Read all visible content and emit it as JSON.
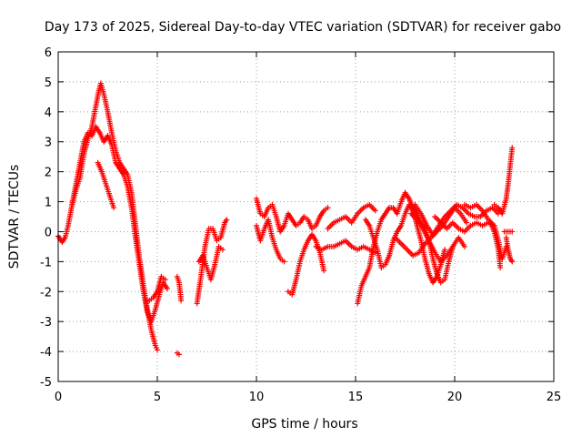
{
  "chart_data": {
    "type": "scatter",
    "title": "Day 173 of 2025, Sidereal Day-to-day VTEC variation (SDTVAR) for receiver gabo",
    "xlabel": "GPS time / hours",
    "ylabel": "SDTVAR / TECUs",
    "xlim": [
      0,
      25
    ],
    "ylim": [
      -5,
      6
    ],
    "xticks": [
      "0",
      "5",
      "10",
      "15",
      "20",
      "25"
    ],
    "yticks": [
      "-5",
      "-4",
      "-3",
      "-2",
      "-1",
      "0",
      "1",
      "2",
      "3",
      "4",
      "5",
      "6"
    ],
    "grid": true,
    "marker": "+",
    "series": [
      {
        "name": "SDTVAR",
        "color": "#ff0000",
        "segments": [
          [
            [
              0.0,
              -0.15
            ],
            [
              0.2,
              -0.35
            ],
            [
              0.35,
              -0.2
            ],
            [
              0.5,
              0.2
            ],
            [
              0.7,
              0.9
            ],
            [
              0.9,
              1.4
            ],
            [
              1.1,
              1.8
            ],
            [
              1.3,
              2.6
            ],
            [
              1.5,
              3.1
            ],
            [
              1.7,
              3.5
            ],
            [
              1.9,
              4.2
            ],
            [
              2.05,
              4.7
            ],
            [
              2.15,
              4.95
            ],
            [
              2.3,
              4.6
            ],
            [
              2.5,
              4.0
            ],
            [
              2.7,
              3.3
            ],
            [
              2.9,
              2.7
            ],
            [
              3.1,
              2.3
            ],
            [
              3.3,
              2.1
            ],
            [
              3.5,
              1.9
            ],
            [
              3.7,
              1.3
            ],
            [
              3.9,
              0.2
            ],
            [
              4.1,
              -0.9
            ],
            [
              4.3,
              -1.8
            ],
            [
              4.5,
              -2.6
            ],
            [
              4.7,
              -3.3
            ],
            [
              4.9,
              -3.8
            ],
            [
              5.0,
              -3.95
            ]
          ],
          [
            [
              0.7,
              0.9
            ],
            [
              0.9,
              1.6
            ],
            [
              1.1,
              2.3
            ],
            [
              1.3,
              3.0
            ],
            [
              1.5,
              3.3
            ],
            [
              1.7,
              3.2
            ],
            [
              1.9,
              3.5
            ],
            [
              2.1,
              3.3
            ],
            [
              2.3,
              3.0
            ],
            [
              2.5,
              3.2
            ],
            [
              2.7,
              2.9
            ],
            [
              2.9,
              2.3
            ],
            [
              3.1,
              2.1
            ],
            [
              3.3,
              1.9
            ],
            [
              3.5,
              1.5
            ],
            [
              3.7,
              0.8
            ],
            [
              3.9,
              -0.2
            ],
            [
              4.1,
              -1.1
            ],
            [
              4.3,
              -2.0
            ],
            [
              4.5,
              -2.7
            ],
            [
              4.7,
              -3.0
            ],
            [
              4.9,
              -2.6
            ],
            [
              5.1,
              -2.1
            ],
            [
              5.3,
              -1.7
            ],
            [
              5.5,
              -1.9
            ]
          ],
          [
            [
              2.0,
              2.3
            ],
            [
              2.2,
              2.0
            ],
            [
              2.4,
              1.6
            ],
            [
              2.6,
              1.2
            ],
            [
              2.8,
              0.8
            ]
          ],
          [
            [
              4.6,
              -2.3
            ],
            [
              4.8,
              -2.2
            ],
            [
              5.0,
              -2.0
            ],
            [
              5.2,
              -1.5
            ],
            [
              5.4,
              -1.6
            ]
          ],
          [
            [
              6.0,
              -4.05
            ],
            [
              6.1,
              -4.1
            ]
          ],
          [
            [
              6.0,
              -1.5
            ],
            [
              6.1,
              -1.7
            ],
            [
              6.2,
              -2.3
            ]
          ],
          [
            [
              7.0,
              -2.4
            ],
            [
              7.2,
              -1.5
            ],
            [
              7.4,
              -0.5
            ],
            [
              7.6,
              0.1
            ],
            [
              7.8,
              0.1
            ],
            [
              8.0,
              -0.3
            ],
            [
              8.2,
              -0.2
            ],
            [
              8.4,
              0.3
            ],
            [
              8.5,
              0.4
            ]
          ],
          [
            [
              7.1,
              -1.0
            ],
            [
              7.3,
              -0.8
            ],
            [
              7.5,
              -1.2
            ],
            [
              7.7,
              -1.6
            ],
            [
              7.9,
              -1.1
            ],
            [
              8.1,
              -0.5
            ],
            [
              8.3,
              -0.6
            ]
          ],
          [
            [
              10.0,
              1.1
            ],
            [
              10.2,
              0.6
            ],
            [
              10.4,
              0.5
            ],
            [
              10.6,
              0.8
            ],
            [
              10.8,
              0.9
            ],
            [
              11.0,
              0.5
            ],
            [
              11.2,
              0.0
            ],
            [
              11.4,
              0.2
            ],
            [
              11.6,
              0.6
            ],
            [
              11.8,
              0.4
            ],
            [
              12.0,
              0.2
            ],
            [
              12.2,
              0.3
            ],
            [
              12.4,
              0.5
            ],
            [
              12.6,
              0.4
            ],
            [
              12.8,
              0.1
            ],
            [
              13.0,
              0.2
            ],
            [
              13.2,
              0.5
            ],
            [
              13.4,
              0.7
            ],
            [
              13.6,
              0.8
            ]
          ],
          [
            [
              10.0,
              0.2
            ],
            [
              10.2,
              -0.3
            ],
            [
              10.4,
              0.1
            ],
            [
              10.6,
              0.4
            ],
            [
              10.8,
              -0.2
            ],
            [
              11.0,
              -0.6
            ],
            [
              11.2,
              -0.9
            ],
            [
              11.4,
              -1.0
            ]
          ],
          [
            [
              11.6,
              -2.0
            ],
            [
              11.8,
              -2.1
            ],
            [
              12.0,
              -1.6
            ],
            [
              12.2,
              -1.0
            ],
            [
              12.4,
              -0.6
            ],
            [
              12.6,
              -0.3
            ],
            [
              12.8,
              -0.1
            ],
            [
              13.0,
              -0.3
            ],
            [
              13.2,
              -0.7
            ],
            [
              13.4,
              -1.3
            ]
          ],
          [
            [
              13.0,
              -0.5
            ],
            [
              13.3,
              -0.6
            ],
            [
              13.6,
              -0.5
            ],
            [
              13.9,
              -0.5
            ],
            [
              14.2,
              -0.4
            ],
            [
              14.5,
              -0.3
            ],
            [
              14.8,
              -0.5
            ],
            [
              15.1,
              -0.6
            ],
            [
              15.4,
              -0.5
            ],
            [
              15.7,
              -0.6
            ],
            [
              16.0,
              -0.7
            ]
          ],
          [
            [
              13.6,
              0.1
            ],
            [
              13.9,
              0.3
            ],
            [
              14.2,
              0.4
            ],
            [
              14.5,
              0.5
            ],
            [
              14.8,
              0.3
            ],
            [
              15.1,
              0.6
            ],
            [
              15.4,
              0.8
            ],
            [
              15.7,
              0.9
            ],
            [
              16.0,
              0.7
            ]
          ],
          [
            [
              15.1,
              -2.4
            ],
            [
              15.3,
              -1.8
            ],
            [
              15.5,
              -1.5
            ],
            [
              15.7,
              -1.2
            ],
            [
              15.9,
              -0.5
            ],
            [
              16.1,
              0.0
            ],
            [
              16.3,
              0.4
            ],
            [
              16.5,
              0.6
            ],
            [
              16.7,
              0.8
            ],
            [
              16.9,
              0.8
            ],
            [
              17.1,
              0.6
            ],
            [
              17.3,
              1.0
            ],
            [
              17.5,
              1.3
            ],
            [
              17.7,
              1.1
            ],
            [
              17.9,
              0.8
            ],
            [
              18.1,
              0.6
            ],
            [
              18.3,
              0.3
            ],
            [
              18.5,
              0.1
            ],
            [
              18.7,
              -0.3
            ],
            [
              18.9,
              -0.9
            ],
            [
              19.1,
              -1.4
            ],
            [
              19.3,
              -1.7
            ],
            [
              19.5,
              -1.6
            ],
            [
              19.7,
              -1.0
            ],
            [
              19.9,
              -0.5
            ]
          ],
          [
            [
              15.5,
              0.4
            ],
            [
              15.7,
              0.2
            ],
            [
              15.9,
              -0.2
            ],
            [
              16.1,
              -0.6
            ],
            [
              16.3,
              -1.2
            ],
            [
              16.5,
              -1.1
            ],
            [
              16.7,
              -0.8
            ],
            [
              16.9,
              -0.3
            ],
            [
              17.1,
              0.0
            ],
            [
              17.3,
              0.2
            ],
            [
              17.5,
              0.6
            ],
            [
              17.7,
              0.9
            ],
            [
              17.9,
              0.7
            ],
            [
              18.1,
              0.2
            ],
            [
              18.3,
              -0.3
            ],
            [
              18.5,
              -0.9
            ],
            [
              18.7,
              -1.4
            ],
            [
              18.9,
              -1.7
            ],
            [
              19.1,
              -1.5
            ],
            [
              19.3,
              -1.1
            ],
            [
              19.5,
              -0.6
            ]
          ],
          [
            [
              17.0,
              -0.2
            ],
            [
              17.3,
              -0.4
            ],
            [
              17.6,
              -0.6
            ],
            [
              17.9,
              -0.8
            ],
            [
              18.2,
              -0.7
            ],
            [
              18.5,
              -0.4
            ],
            [
              18.8,
              -0.2
            ],
            [
              19.1,
              0.0
            ],
            [
              19.4,
              0.2
            ],
            [
              19.7,
              0.5
            ],
            [
              20.0,
              0.8
            ],
            [
              20.3,
              0.6
            ],
            [
              20.6,
              0.3
            ]
          ],
          [
            [
              18.0,
              0.9
            ],
            [
              18.3,
              0.6
            ],
            [
              18.6,
              0.2
            ],
            [
              18.9,
              -0.1
            ],
            [
              19.2,
              0.2
            ],
            [
              19.5,
              0.5
            ],
            [
              19.8,
              0.7
            ],
            [
              20.1,
              0.9
            ],
            [
              20.4,
              0.8
            ],
            [
              20.7,
              0.6
            ],
            [
              21.0,
              0.5
            ],
            [
              21.3,
              0.5
            ],
            [
              21.6,
              0.7
            ],
            [
              21.9,
              0.8
            ],
            [
              22.2,
              0.6
            ]
          ],
          [
            [
              17.8,
              0.6
            ],
            [
              18.1,
              0.4
            ],
            [
              18.4,
              0.1
            ],
            [
              18.7,
              -0.3
            ],
            [
              19.0,
              -0.7
            ],
            [
              19.3,
              -1.0
            ],
            [
              19.6,
              -0.8
            ],
            [
              19.9,
              -0.5
            ],
            [
              20.2,
              -0.2
            ],
            [
              20.5,
              -0.5
            ]
          ],
          [
            [
              19.0,
              0.5
            ],
            [
              19.3,
              0.3
            ],
            [
              19.6,
              0.1
            ],
            [
              19.9,
              0.3
            ],
            [
              20.2,
              0.1
            ],
            [
              20.5,
              0.0
            ],
            [
              20.8,
              0.2
            ],
            [
              21.1,
              0.3
            ],
            [
              21.4,
              0.2
            ],
            [
              21.7,
              0.3
            ],
            [
              22.0,
              0.2
            ]
          ],
          [
            [
              20.5,
              0.9
            ],
            [
              20.8,
              0.8
            ],
            [
              21.1,
              0.9
            ],
            [
              21.4,
              0.7
            ],
            [
              21.7,
              0.4
            ],
            [
              22.0,
              0.2
            ],
            [
              22.2,
              -0.3
            ],
            [
              22.4,
              -0.9
            ],
            [
              22.6,
              -0.5
            ]
          ],
          [
            [
              21.8,
              0.3
            ],
            [
              22.0,
              0.0
            ],
            [
              22.2,
              -0.6
            ],
            [
              22.3,
              -1.2
            ]
          ],
          [
            [
              22.0,
              0.9
            ],
            [
              22.2,
              0.8
            ],
            [
              22.4,
              0.6
            ],
            [
              22.6,
              1.1
            ],
            [
              22.7,
              1.6
            ],
            [
              22.8,
              2.2
            ],
            [
              22.9,
              2.8
            ]
          ],
          [
            [
              22.6,
              -0.2
            ],
            [
              22.7,
              -0.6
            ],
            [
              22.8,
              -0.9
            ],
            [
              22.9,
              -1.0
            ]
          ],
          [
            [
              22.5,
              0.0
            ],
            [
              22.7,
              0.0
            ],
            [
              22.9,
              0.0
            ]
          ]
        ]
      }
    ]
  }
}
